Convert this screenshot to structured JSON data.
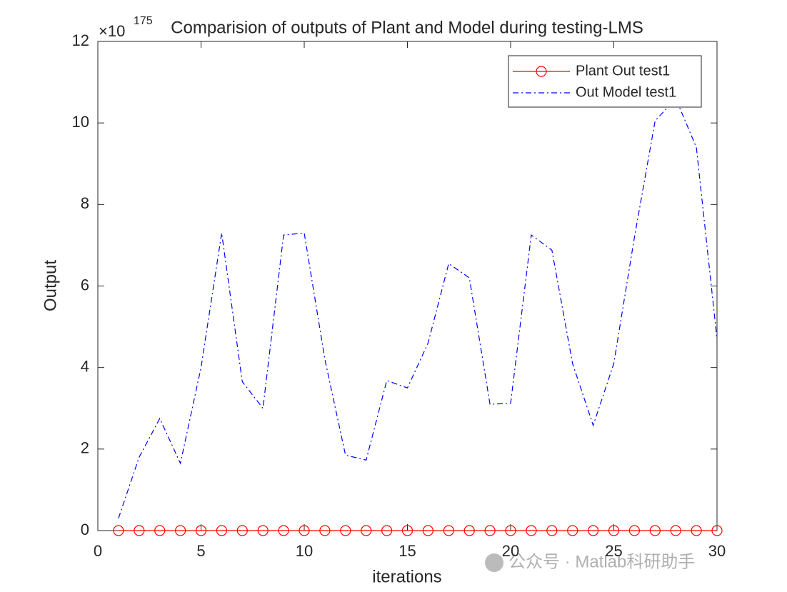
{
  "chart_data": {
    "type": "line",
    "title": "Comparision of outputs of Plant and Model during testing-LMS",
    "x_label": "iterations",
    "y_label": "Output",
    "y_exponent": {
      "base": "×10",
      "power": "175"
    },
    "x": [
      1,
      2,
      3,
      4,
      5,
      6,
      7,
      8,
      9,
      10,
      11,
      12,
      13,
      14,
      15,
      16,
      17,
      18,
      19,
      20,
      21,
      22,
      23,
      24,
      25,
      26,
      27,
      28,
      29,
      30
    ],
    "series": [
      {
        "name": "Plant Out test1",
        "color": "#ff0000",
        "line_style": "solid",
        "marker": "circle",
        "values": [
          0,
          0,
          0,
          0,
          0,
          0,
          0,
          0,
          0,
          0,
          0,
          0,
          0,
          0,
          0,
          0,
          0,
          0,
          0,
          0,
          0,
          0,
          0,
          0,
          0,
          0,
          0,
          0,
          0,
          0
        ]
      },
      {
        "name": "Out Model test1",
        "color": "#0000ff",
        "line_style": "dashdot",
        "values": [
          0.3,
          1.8,
          2.75,
          1.65,
          4.0,
          7.3,
          3.65,
          3.0,
          7.25,
          7.3,
          4.2,
          1.85,
          1.73,
          3.68,
          3.5,
          4.6,
          6.55,
          6.2,
          3.1,
          3.12,
          7.25,
          6.88,
          4.1,
          2.58,
          4.1,
          7.2,
          10.05,
          10.6,
          9.4,
          4.7
        ]
      }
    ],
    "xlim": [
      0,
      30
    ],
    "ylim": [
      0,
      12
    ],
    "xticks": [
      0,
      5,
      10,
      15,
      20,
      25,
      30
    ],
    "yticks": [
      0,
      2,
      4,
      6,
      8,
      10,
      12
    ],
    "legend": "northeast",
    "watermark": "公众号 · Matlab科研助手"
  }
}
